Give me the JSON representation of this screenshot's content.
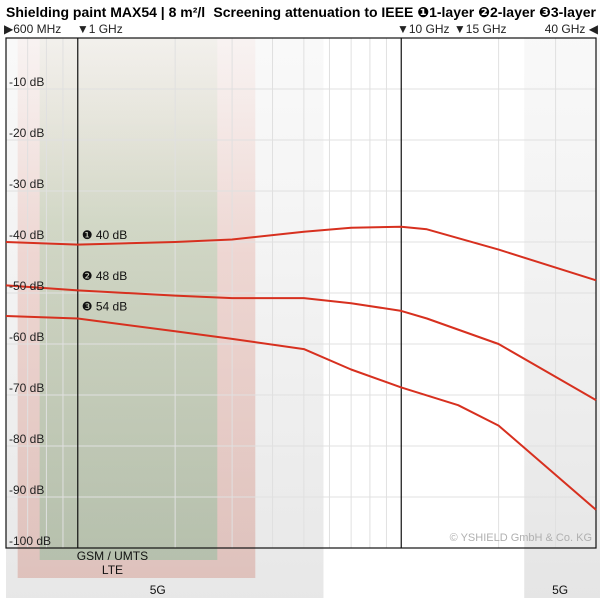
{
  "chart_data": {
    "type": "line",
    "title": "Shielding paint MAX54 | 8 m²/l",
    "subtitle": "Screening attenuation to IEEE",
    "x_scale": "log",
    "xlim_mhz": [
      600,
      40000
    ],
    "ylim": [
      -100,
      0
    ],
    "y_ticks": [
      {
        "value": -10,
        "label": "-10 dB"
      },
      {
        "value": -20,
        "label": "-20 dB"
      },
      {
        "value": -30,
        "label": "-30 dB"
      },
      {
        "value": -40,
        "label": "-40 dB"
      },
      {
        "value": -50,
        "label": "-50 dB"
      },
      {
        "value": -60,
        "label": "-60 dB"
      },
      {
        "value": -70,
        "label": "-70 dB"
      },
      {
        "value": -80,
        "label": "-80 dB"
      },
      {
        "value": -90,
        "label": "-90 dB"
      },
      {
        "value": -100,
        "label": "-100 dB"
      }
    ],
    "x_ticks": [
      {
        "value": 600,
        "label": "600 MHz",
        "marker": "▶"
      },
      {
        "value": 1000,
        "label": "1 GHz",
        "marker": "▼"
      },
      {
        "value": 10000,
        "label": "10 GHz",
        "marker": "▼"
      },
      {
        "value": 15000,
        "label": "15 GHz",
        "marker": "▼"
      },
      {
        "value": 40000,
        "label": "40 GHz",
        "marker": "◀"
      }
    ],
    "legend": [
      {
        "symbol": "❶",
        "label": "1-layer"
      },
      {
        "symbol": "❷",
        "label": "2-layer"
      },
      {
        "symbol": "❸",
        "label": "3-layer"
      }
    ],
    "series": [
      {
        "name": "1-layer",
        "color": "#d7301f",
        "x": [
          600,
          1000,
          2000,
          3000,
          5000,
          7000,
          10000,
          12000,
          20000,
          40000
        ],
        "y": [
          -40,
          -40.5,
          -40,
          -39.5,
          -38,
          -37.2,
          -37,
          -37.5,
          -41.5,
          -47.5
        ]
      },
      {
        "name": "2-layer",
        "color": "#d7301f",
        "x": [
          600,
          1000,
          2000,
          3000,
          5000,
          7000,
          10000,
          12000,
          20000,
          40000
        ],
        "y": [
          -48.5,
          -49.5,
          -50.5,
          -51,
          -51,
          -52,
          -53.5,
          -55,
          -60,
          -71
        ]
      },
      {
        "name": "3-layer",
        "color": "#d7301f",
        "x": [
          600,
          1000,
          2000,
          3000,
          5000,
          7000,
          10000,
          15000,
          20000,
          40000
        ],
        "y": [
          -54.5,
          -55,
          -57.5,
          -59,
          -61,
          -65,
          -68.5,
          -72,
          -76,
          -92.5
        ]
      }
    ],
    "annotations": [
      {
        "symbol": "❶",
        "text": "40 dB",
        "x": 1000,
        "y": -40
      },
      {
        "symbol": "❷",
        "text": "48 dB",
        "x": 1000,
        "y": -48
      },
      {
        "symbol": "❸",
        "text": "54 dB",
        "x": 1000,
        "y": -54
      }
    ],
    "bands": [
      {
        "label": "GSM / UMTS\nLTE",
        "x_mhz": [
          700,
          2700
        ],
        "fill": "gsm"
      },
      {
        "label": "5G",
        "x_mhz": [
          600,
          6000
        ],
        "fill": "5g-low"
      },
      {
        "label": "5G",
        "x_mhz": [
          24000,
          40000
        ],
        "fill": "5g-high"
      }
    ],
    "grid": true,
    "copyright": "© YSHIELD GmbH & Co. KG"
  }
}
